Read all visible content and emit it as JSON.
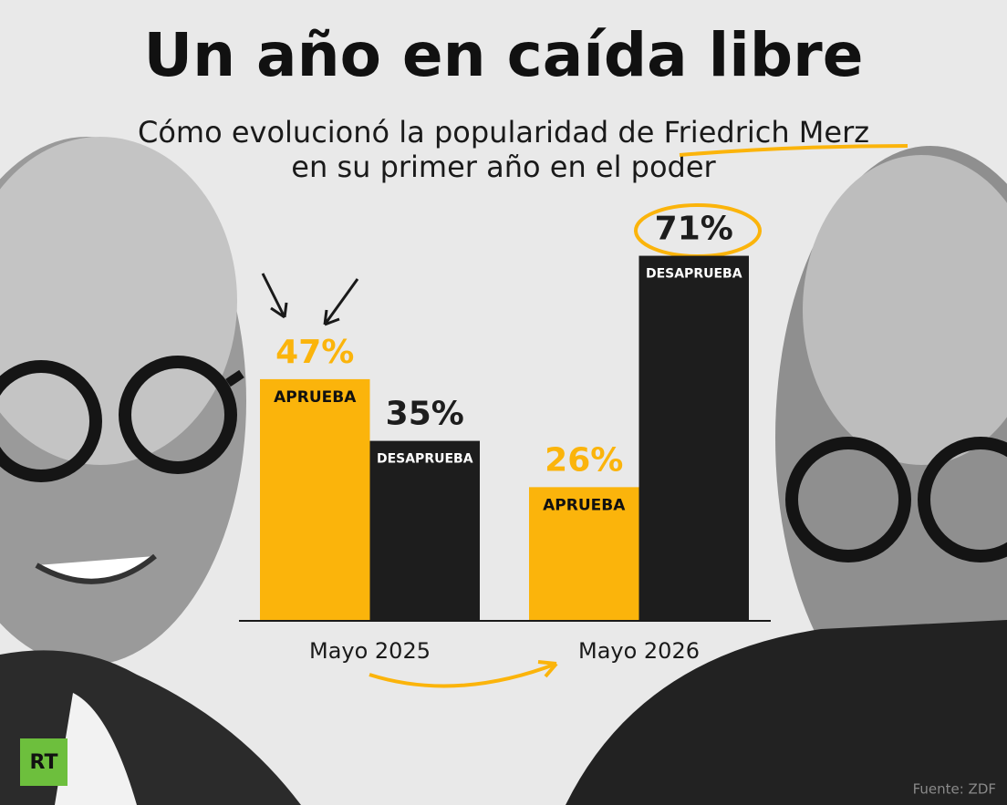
{
  "chart_data": {
    "type": "bar",
    "title": "Un año en caída libre",
    "subtitle": [
      "Cómo evolucionó la popularidad de Friedrich Merz",
      "en su primer año en el poder"
    ],
    "categories": [
      "Mayo 2025",
      "Mayo 2026"
    ],
    "series": [
      {
        "name": "APRUEBA",
        "color": "#fbb40b",
        "values": [
          47,
          26
        ],
        "value_labels": [
          "47%",
          "26%"
        ]
      },
      {
        "name": "DESAPRUEBA",
        "color": "#1d1d1d",
        "values": [
          35,
          71
        ],
        "value_labels": [
          "35%",
          "71%"
        ]
      }
    ],
    "source": "Fuente: ZDF",
    "logo": "RT"
  }
}
